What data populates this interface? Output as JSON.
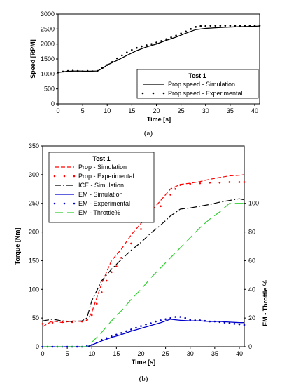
{
  "chart_data": [
    {
      "type": "line",
      "panel_label": "(a)",
      "xlabel": "Time [s]",
      "ylabel": "Speed [RPM]",
      "xlim": [
        0,
        41
      ],
      "ylim": [
        0,
        3000
      ],
      "xticks": [
        0,
        5,
        10,
        15,
        20,
        25,
        30,
        35,
        40
      ],
      "yticks": [
        0,
        500,
        1000,
        1500,
        2000,
        2500,
        3000
      ],
      "legend_title": "Test 1",
      "legend_position": "bottom-right",
      "grid": false,
      "series": [
        {
          "name": "Prop speed - Simulation",
          "style": "solid",
          "color": "#000000",
          "x": [
            0,
            2,
            4,
            6,
            8,
            9,
            10,
            12,
            14,
            16,
            18,
            20,
            22,
            24,
            26,
            28,
            30,
            32,
            34,
            36,
            38,
            40,
            41
          ],
          "y": [
            1050,
            1090,
            1100,
            1090,
            1100,
            1180,
            1300,
            1450,
            1620,
            1780,
            1900,
            2000,
            2120,
            2230,
            2360,
            2480,
            2520,
            2540,
            2560,
            2570,
            2580,
            2590,
            2600
          ]
        },
        {
          "name": "Prop speed - Experimental",
          "style": "dots",
          "color": "#000000",
          "x": [
            0,
            1,
            2,
            3,
            4,
            5,
            6,
            7,
            8,
            9,
            10,
            11,
            12,
            13,
            14,
            15,
            16,
            17,
            18,
            19,
            20,
            21,
            22,
            23,
            24,
            25,
            26,
            27,
            28,
            29,
            30,
            31,
            32,
            33,
            34,
            35,
            36,
            37,
            38,
            39,
            40,
            41
          ],
          "y": [
            1050,
            1080,
            1100,
            1110,
            1100,
            1090,
            1100,
            1090,
            1100,
            1200,
            1300,
            1400,
            1520,
            1620,
            1720,
            1800,
            1870,
            1920,
            1960,
            2000,
            2050,
            2100,
            2160,
            2220,
            2280,
            2350,
            2420,
            2500,
            2570,
            2600,
            2600,
            2610,
            2610,
            2610,
            2610,
            2610,
            2610,
            2610,
            2610,
            2610,
            2610,
            2610
          ]
        }
      ]
    },
    {
      "type": "line",
      "panel_label": "(b)",
      "xlabel": "Time [s]",
      "ylabel": "Torque [Nm]",
      "y2label": "EM - Throttle %",
      "xlim": [
        0,
        41
      ],
      "ylim": [
        0,
        350
      ],
      "y2lim": [
        0,
        140
      ],
      "xticks": [
        0,
        5,
        10,
        15,
        20,
        25,
        30,
        35,
        40
      ],
      "yticks": [
        0,
        50,
        100,
        150,
        200,
        250,
        300,
        350
      ],
      "y2ticks": [
        0,
        20,
        40,
        60,
        80,
        100
      ],
      "legend_title": "Test 1",
      "legend_position": "top-left",
      "grid": false,
      "series": [
        {
          "name": "Prop - Simulation",
          "style": "dashed",
          "color": "#ff0000",
          "axis": "left",
          "x": [
            0,
            2,
            4,
            6,
            8,
            9,
            10,
            12,
            14,
            16,
            18,
            20,
            22,
            24,
            26,
            28,
            30,
            32,
            34,
            36,
            38,
            40,
            41
          ],
          "y": [
            35,
            45,
            42,
            45,
            44,
            45,
            60,
            110,
            150,
            170,
            195,
            215,
            235,
            255,
            275,
            283,
            285,
            288,
            292,
            295,
            298,
            299,
            300
          ]
        },
        {
          "name": "Prop - Experimental",
          "style": "dots",
          "color": "#ff0000",
          "axis": "left",
          "x": [
            0,
            2,
            4,
            6,
            8,
            9,
            10,
            11,
            12,
            13,
            14,
            15,
            16,
            18,
            20,
            22,
            24,
            26,
            27,
            28,
            30,
            32,
            34,
            36,
            38,
            40,
            41
          ],
          "y": [
            40,
            42,
            44,
            43,
            44,
            46,
            55,
            75,
            95,
            115,
            130,
            140,
            155,
            180,
            205,
            225,
            245,
            265,
            275,
            282,
            284,
            285,
            286,
            286,
            287,
            287,
            287
          ]
        },
        {
          "name": "ICE - Simulation",
          "style": "dashdot",
          "color": "#000000",
          "axis": "left",
          "x": [
            0,
            2,
            4,
            6,
            8,
            9,
            10,
            12,
            14,
            16,
            18,
            20,
            22,
            24,
            26,
            28,
            30,
            32,
            34,
            36,
            38,
            40,
            41
          ],
          "y": [
            45,
            48,
            45,
            44,
            45,
            50,
            80,
            115,
            135,
            152,
            168,
            182,
            198,
            212,
            228,
            240,
            242,
            245,
            248,
            252,
            255,
            258,
            256
          ]
        },
        {
          "name": "EM - Simulation",
          "style": "solid",
          "color": "#0000cc",
          "axis": "left",
          "x": [
            0,
            9,
            10,
            12,
            14,
            16,
            18,
            20,
            22,
            24,
            26,
            28,
            30,
            32,
            34,
            36,
            38,
            40,
            41
          ],
          "y": [
            0,
            0,
            3,
            10,
            16,
            21,
            27,
            32,
            37,
            42,
            48,
            46,
            45,
            45,
            44,
            44,
            43,
            42,
            42
          ]
        },
        {
          "name": "EM - Experimental",
          "style": "dots",
          "color": "#0000cc",
          "axis": "left",
          "x": [
            0,
            1,
            2,
            3,
            4,
            5,
            6,
            7,
            8,
            9,
            10,
            11,
            12,
            13,
            14,
            15,
            16,
            17,
            18,
            19,
            20,
            21,
            22,
            23,
            24,
            25,
            26,
            27,
            28,
            29,
            30,
            31,
            32,
            33,
            34,
            35,
            36,
            37,
            38,
            39,
            40,
            41
          ],
          "y": [
            0,
            0,
            0,
            0,
            0,
            0,
            0,
            0,
            0,
            1,
            3,
            7,
            12,
            15,
            18,
            21,
            24,
            27,
            30,
            33,
            36,
            39,
            41,
            44,
            46,
            48,
            50,
            52,
            52,
            50,
            47,
            46,
            46,
            45,
            44,
            44,
            43,
            42,
            41,
            40,
            39,
            38
          ]
        },
        {
          "name": "EM - Throttle%",
          "style": "longdash",
          "color": "#33cc33",
          "axis": "right",
          "x": [
            0,
            9,
            10,
            12,
            14,
            16,
            18,
            20,
            22,
            24,
            26,
            28,
            30,
            32,
            34,
            36,
            38,
            40,
            41
          ],
          "y": [
            0,
            0,
            3,
            10,
            18,
            25,
            33,
            40,
            48,
            55,
            62,
            69,
            76,
            83,
            89,
            94,
            100,
            100,
            100
          ]
        }
      ]
    }
  ]
}
